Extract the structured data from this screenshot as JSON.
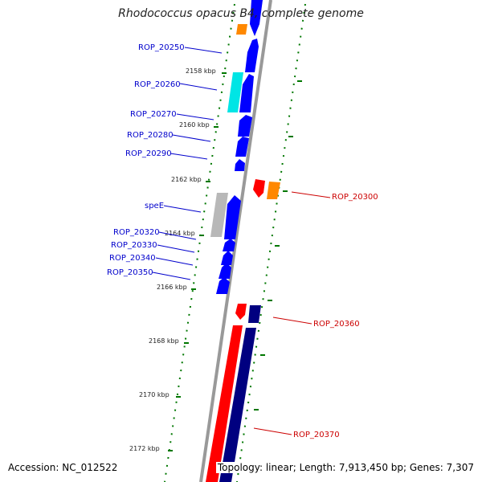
{
  "title": "Rhodococcus opacus B4, complete genome",
  "footer": {
    "accession": "Accession: NC_012522",
    "summary": "Topology: linear; Length: 7,913,450 bp; Genes: 7,307"
  },
  "colors": {
    "backbone": "#999999",
    "tick": "#007700",
    "left_label": "#0000cc",
    "right_label": "#cc0000",
    "blue_gene": "#0000ff",
    "navy_gene": "#000080",
    "red_gene": "#ff0000",
    "orange_gene": "#ff8800",
    "cyan_gene": "#00e5e5",
    "gray_gene": "#b8b8b8"
  },
  "ticks": [
    "2158 kbp",
    "2160 kbp",
    "2162 kbp",
    "2164 kbp",
    "2166 kbp",
    "2168 kbp",
    "2170 kbp",
    "2172 kbp"
  ],
  "left_labels": [
    "ROP_20250",
    "ROP_20260",
    "ROP_20270",
    "ROP_20280",
    "ROP_20290",
    "speE",
    "ROP_20320",
    "ROP_20330",
    "ROP_20340",
    "ROP_20350"
  ],
  "right_labels": [
    "ROP_20300",
    "ROP_20360",
    "ROP_20370"
  ]
}
